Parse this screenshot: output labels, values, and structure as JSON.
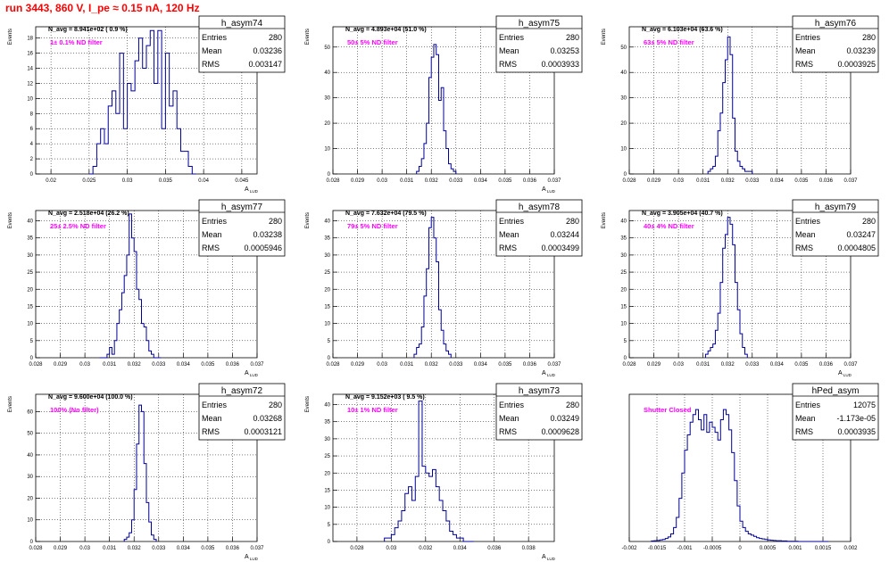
{
  "page_title": "run 3443,   860 V, I_pe ≈ 0.15 nA, 120 Hz",
  "colors": {
    "title": "#ff0000",
    "histogram": "#000099",
    "annotation": "#ff00ff",
    "grid": "#000000"
  },
  "stats_labels": {
    "entries": "Entries",
    "mean": "Mean",
    "rms": "RMS"
  },
  "chart_data": [
    {
      "type": "bar",
      "name": "h_asym74",
      "ylabel": "Events",
      "xlabel": "A_LUD",
      "annotation": "N_avg = 8.941e+02 ( 0.9 %)",
      "filter_label": "1± 0.1% ND filter",
      "stats": {
        "entries": "280",
        "mean": "0.03236",
        "rms": "0.003147"
      },
      "xlim": [
        0.018,
        0.047
      ],
      "ylim": [
        0,
        19.5
      ],
      "xticks": [
        0.02,
        0.025,
        0.03,
        0.035,
        0.04,
        0.045
      ],
      "xticklabels": [
        "0.02",
        "0.025",
        "0.03",
        "0.035",
        "0.04",
        "0.045"
      ],
      "yticks": [
        0,
        2,
        4,
        6,
        8,
        10,
        12,
        14,
        16,
        18
      ],
      "yticklabels": [
        "0",
        "2",
        "4",
        "6",
        "8",
        "10",
        "12",
        "14",
        "16",
        "18"
      ],
      "bin_start": 0.025,
      "bin_width": 0.0005,
      "values": [
        0,
        1,
        4,
        6,
        4,
        9,
        11,
        8,
        16,
        6,
        12,
        11,
        15,
        18,
        14,
        17,
        19,
        12,
        19,
        6,
        16,
        9,
        11,
        6,
        3,
        3,
        1,
        0
      ]
    },
    {
      "type": "bar",
      "name": "h_asym75",
      "ylabel": "Events",
      "xlabel": "A_LUD",
      "annotation": "N_avg = 4.893e+04 (51.0 %)",
      "filter_label": "50± 5% ND filter",
      "stats": {
        "entries": "280",
        "mean": "0.03253",
        "rms": "0.0003933"
      },
      "xlim": [
        0.028,
        0.037
      ],
      "ylim": [
        0,
        58
      ],
      "xticks": [
        0.028,
        0.029,
        0.03,
        0.031,
        0.032,
        0.033,
        0.034,
        0.035,
        0.036,
        0.037
      ],
      "xticklabels": [
        "0.028",
        "0.029",
        "0.03",
        "0.031",
        "0.032",
        "0.033",
        "0.034",
        "0.035",
        "0.036",
        "0.037"
      ],
      "yticks": [
        0,
        10,
        20,
        30,
        40,
        50
      ],
      "yticklabels": [
        "0",
        "10",
        "20",
        "30",
        "40",
        "50"
      ],
      "bin_start": 0.0314,
      "bin_width": 0.0001,
      "values": [
        1,
        3,
        6,
        12,
        20,
        38,
        46,
        51,
        47,
        29,
        34,
        17,
        10,
        4,
        2,
        1
      ]
    },
    {
      "type": "bar",
      "name": "h_asym76",
      "ylabel": "Events",
      "xlabel": "",
      "annotation": "N_avg = 6.103e+04 (63.6 %)",
      "filter_label": "63± 5% ND filter",
      "stats": {
        "entries": "280",
        "mean": "0.03239",
        "rms": "0.0003925"
      },
      "xlim": [
        0.028,
        0.037
      ],
      "ylim": [
        0,
        58
      ],
      "xticks": [
        0.028,
        0.029,
        0.03,
        0.031,
        0.032,
        0.033,
        0.034,
        0.035,
        0.036,
        0.037
      ],
      "xticklabels": [
        "0.028",
        "0.029",
        "0.03",
        "0.031",
        "0.032",
        "0.033",
        "0.034",
        "0.035",
        "0.036",
        "0.037"
      ],
      "yticks": [
        0,
        10,
        20,
        30,
        40,
        50
      ],
      "yticklabels": [
        "0",
        "10",
        "20",
        "30",
        "40",
        "50"
      ],
      "bin_start": 0.0312,
      "bin_width": 0.0001,
      "values": [
        1,
        2,
        3,
        7,
        17,
        24,
        36,
        45,
        54,
        47,
        22,
        9,
        5,
        3,
        2,
        1,
        1,
        1
      ]
    },
    {
      "type": "bar",
      "name": "h_asym77",
      "ylabel": "Events",
      "xlabel": "A_LUD",
      "annotation": "N_avg = 2.518e+04 (26.2 %)",
      "filter_label": "25± 2.5% ND filter",
      "stats": {
        "entries": "280",
        "mean": "0.03238",
        "rms": "0.0005946"
      },
      "xlim": [
        0.028,
        0.037
      ],
      "ylim": [
        0,
        43
      ],
      "xticks": [
        0.028,
        0.029,
        0.03,
        0.031,
        0.032,
        0.033,
        0.034,
        0.035,
        0.036,
        0.037
      ],
      "xticklabels": [
        "0.028",
        "0.029",
        "0.03",
        "0.031",
        "0.032",
        "0.033",
        "0.034",
        "0.035",
        "0.036",
        "0.037"
      ],
      "yticks": [
        0,
        5,
        10,
        15,
        20,
        25,
        30,
        35,
        40
      ],
      "yticklabels": [
        "0",
        "5",
        "10",
        "15",
        "20",
        "25",
        "30",
        "35",
        "40"
      ],
      "bin_start": 0.0306,
      "bin_width": 0.0001,
      "values": [
        0,
        0,
        0,
        1,
        3,
        1,
        5,
        10,
        14,
        19,
        24,
        30,
        42,
        35,
        31,
        20,
        17,
        10,
        9,
        5,
        2,
        1,
        0,
        0,
        0
      ]
    },
    {
      "type": "bar",
      "name": "h_asym78",
      "ylabel": "Events",
      "xlabel": "A_LUD",
      "annotation": "N_avg = 7.632e+04 (79.5 %)",
      "filter_label": "79± 5% ND filter",
      "stats": {
        "entries": "280",
        "mean": "0.03244",
        "rms": "0.0003499"
      },
      "xlim": [
        0.028,
        0.037
      ],
      "ylim": [
        0,
        43
      ],
      "xticks": [
        0.028,
        0.029,
        0.03,
        0.031,
        0.032,
        0.033,
        0.034,
        0.035,
        0.036,
        0.037
      ],
      "xticklabels": [
        "0.028",
        "0.029",
        "0.03",
        "0.031",
        "0.032",
        "0.033",
        "0.034",
        "0.035",
        "0.036",
        "0.037"
      ],
      "yticks": [
        0,
        5,
        10,
        15,
        20,
        25,
        30,
        35,
        40
      ],
      "yticklabels": [
        "0",
        "5",
        "10",
        "15",
        "20",
        "25",
        "30",
        "35",
        "40"
      ],
      "bin_start": 0.0313,
      "bin_width": 0.0001,
      "values": [
        1,
        3,
        4,
        9,
        18,
        26,
        38,
        41,
        35,
        28,
        14,
        8,
        4,
        2,
        1
      ]
    },
    {
      "type": "bar",
      "name": "h_asym79",
      "ylabel": "Events",
      "xlabel": "A_LUD",
      "annotation": "N_avg = 3.905e+04 (40.7 %)",
      "filter_label": "40± 4% ND filter",
      "stats": {
        "entries": "280",
        "mean": "0.03247",
        "rms": "0.0004805"
      },
      "xlim": [
        0.028,
        0.037
      ],
      "ylim": [
        0,
        43
      ],
      "xticks": [
        0.028,
        0.029,
        0.03,
        0.031,
        0.032,
        0.033,
        0.034,
        0.035,
        0.036,
        0.037
      ],
      "xticklabels": [
        "0.028",
        "0.029",
        "0.03",
        "0.031",
        "0.032",
        "0.033",
        "0.034",
        "0.035",
        "0.036",
        "0.037"
      ],
      "yticks": [
        0,
        5,
        10,
        15,
        20,
        25,
        30,
        35,
        40
      ],
      "yticklabels": [
        "0",
        "5",
        "10",
        "15",
        "20",
        "25",
        "30",
        "35",
        "40"
      ],
      "bin_start": 0.0311,
      "bin_width": 0.0001,
      "values": [
        1,
        2,
        3,
        4,
        8,
        13,
        22,
        32,
        36,
        41,
        39,
        33,
        22,
        14,
        7,
        3,
        1
      ]
    },
    {
      "type": "bar",
      "name": "h_asym72",
      "ylabel": "Events",
      "xlabel": "A_LUD",
      "annotation": "N_avg = 9.600e+04 (100.0 %)",
      "filter_label": "100% (No filter)",
      "stats": {
        "entries": "280",
        "mean": "0.03268",
        "rms": "0.0003121"
      },
      "xlim": [
        0.028,
        0.037
      ],
      "ylim": [
        0,
        68
      ],
      "xticks": [
        0.028,
        0.029,
        0.03,
        0.031,
        0.032,
        0.033,
        0.034,
        0.035,
        0.036,
        0.037
      ],
      "xticklabels": [
        "0.028",
        "0.029",
        "0.03",
        "0.031",
        "0.032",
        "0.033",
        "0.034",
        "0.035",
        "0.036",
        "0.037"
      ],
      "yticks": [
        0,
        10,
        20,
        30,
        40,
        50,
        60
      ],
      "yticklabels": [
        "0",
        "10",
        "20",
        "30",
        "40",
        "50",
        "60"
      ],
      "bin_start": 0.0316,
      "bin_width": 0.0001,
      "values": [
        1,
        2,
        4,
        10,
        24,
        45,
        63,
        60,
        36,
        18,
        9,
        3,
        1
      ]
    },
    {
      "type": "bar",
      "name": "h_asym73",
      "ylabel": "Events",
      "xlabel": "A_LUD",
      "annotation": "N_avg = 9.152e+03 ( 9.5 %)",
      "filter_label": "10± 1% ND filter",
      "stats": {
        "entries": "280",
        "mean": "0.03249",
        "rms": "0.0009628"
      },
      "xlim": [
        0.0266,
        0.0395
      ],
      "ylim": [
        0,
        43
      ],
      "xticks": [
        0.028,
        0.03,
        0.032,
        0.034,
        0.036,
        0.038
      ],
      "xticklabels": [
        "0.028",
        "0.03",
        "0.032",
        "0.034",
        "0.036",
        "0.038"
      ],
      "yticks": [
        0,
        5,
        10,
        15,
        20,
        25,
        30,
        35,
        40
      ],
      "yticklabels": [
        "0",
        "5",
        "10",
        "15",
        "20",
        "25",
        "30",
        "35",
        "40"
      ],
      "bin_start": 0.0296,
      "bin_width": 0.0002,
      "values": [
        1,
        1,
        2,
        4,
        6,
        9,
        14,
        16,
        12,
        19,
        41,
        22,
        20,
        19,
        21,
        16,
        12,
        9,
        6,
        3,
        2,
        1,
        1,
        0,
        0,
        0
      ]
    },
    {
      "type": "bar",
      "name": "hPed_asym",
      "ylabel": "",
      "xlabel": "",
      "annotation": "",
      "filter_label": "Shutter Closed",
      "stats": {
        "entries": "12075",
        "mean": "-1.173e-05",
        "rms": "0.0003935"
      },
      "xlim": [
        -0.002,
        0.002
      ],
      "ylim": [
        0,
        580
      ],
      "xticks": [
        -0.002,
        -0.0015,
        -0.001,
        -0.0005,
        0,
        0.0005,
        0.001,
        0.0015,
        0.002
      ],
      "xticklabels": [
        "-0.002",
        "-0.0015",
        "-0.001",
        "-0.0005",
        "0",
        "0.0005",
        "0.001",
        "0.0015",
        "0.002"
      ],
      "yticks": [],
      "yticklabels": [],
      "bin_start": -0.0016,
      "bin_width": 5e-05,
      "values": [
        2,
        3,
        4,
        6,
        8,
        12,
        18,
        30,
        55,
        95,
        170,
        270,
        360,
        420,
        470,
        500,
        520,
        480,
        440,
        500,
        430,
        470,
        450,
        430,
        400,
        480,
        520,
        500,
        440,
        350,
        240,
        140,
        80,
        55,
        40,
        30,
        25,
        20,
        15,
        12,
        10,
        8,
        6,
        5,
        4,
        3,
        3,
        2,
        2,
        1,
        1,
        1,
        1,
        0,
        0,
        0,
        0,
        0,
        0,
        0,
        0,
        0,
        0,
        0
      ]
    }
  ]
}
